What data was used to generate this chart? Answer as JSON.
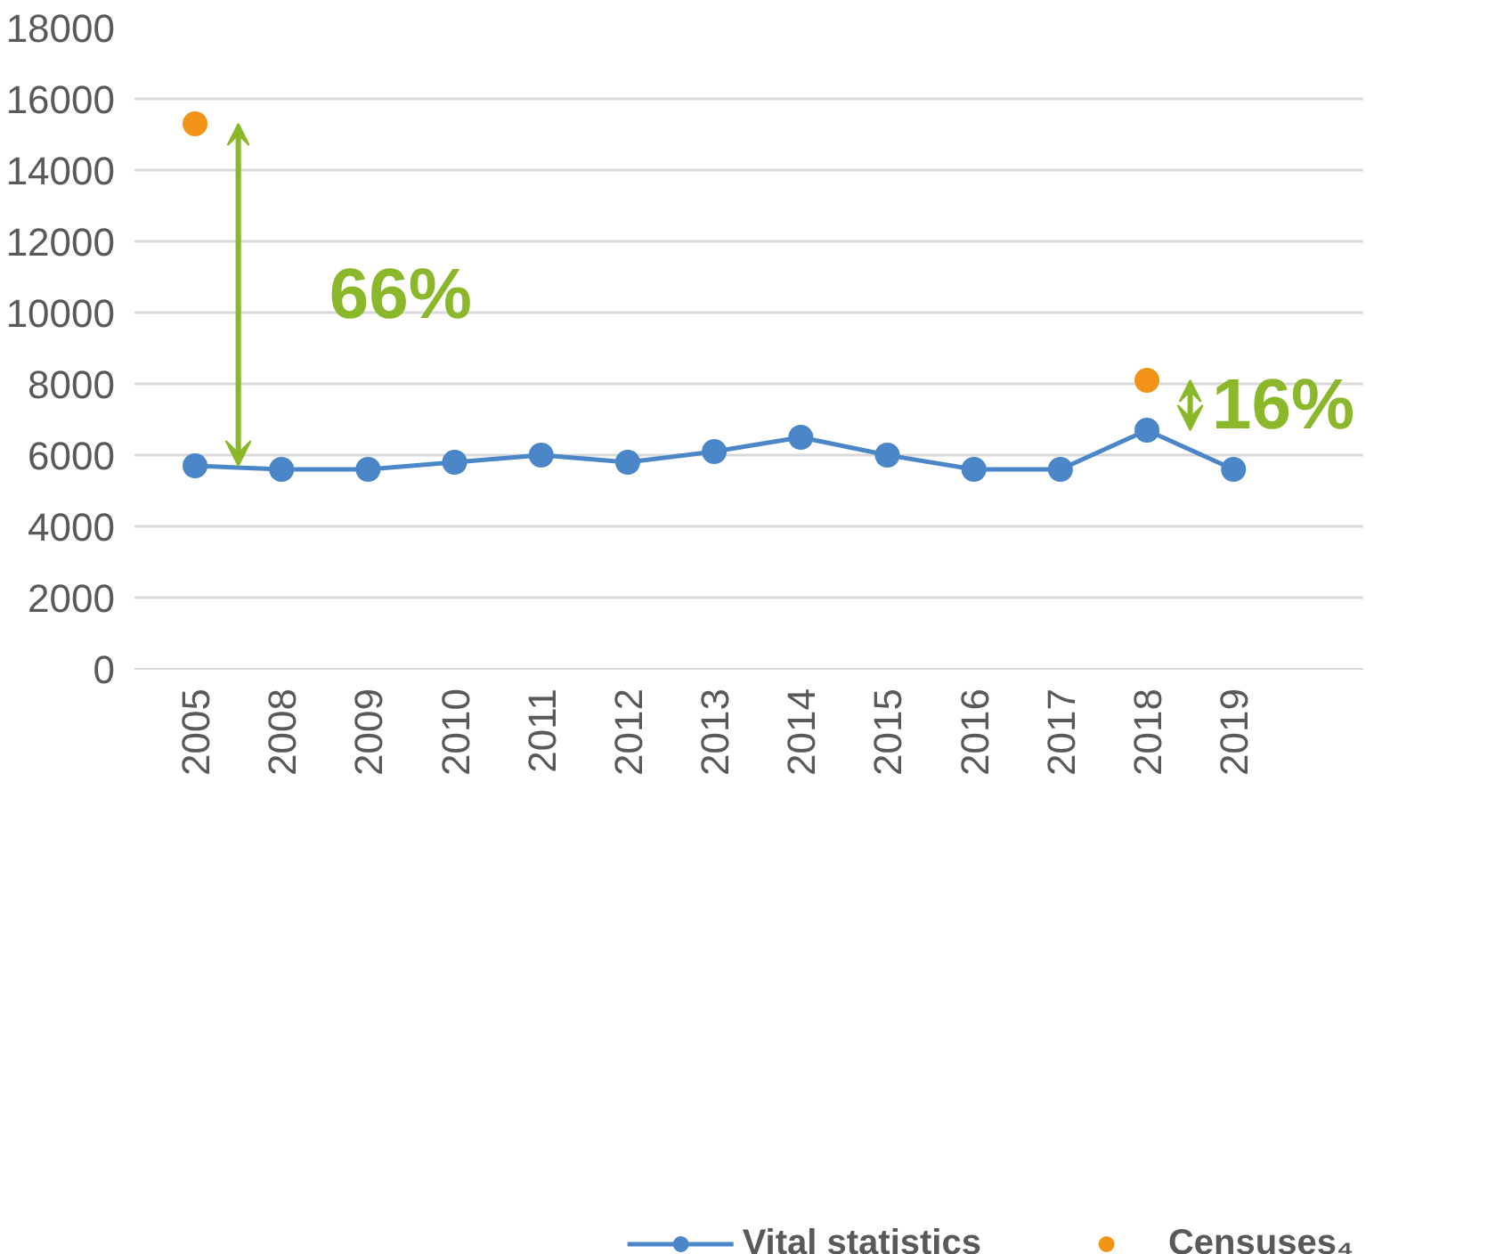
{
  "chart_data": {
    "type": "line",
    "categories": [
      "2005",
      "2008",
      "2009",
      "2010",
      "2011",
      "2012",
      "2013",
      "2014",
      "2015",
      "2016",
      "2017",
      "2018",
      "2019"
    ],
    "series": [
      {
        "name": "Vital statistics",
        "color": "#4a86c8",
        "values": [
          5700,
          5600,
          5600,
          5800,
          6000,
          5800,
          6100,
          6500,
          6000,
          5600,
          5600,
          6700,
          5600
        ]
      },
      {
        "name": "Censuses₄",
        "type": "scatter",
        "color": "#f29418",
        "values": [
          15300,
          null,
          null,
          null,
          null,
          null,
          null,
          null,
          null,
          null,
          null,
          8100,
          null
        ]
      }
    ],
    "ylim": [
      0,
      18000
    ],
    "yticks": [
      0,
      2000,
      4000,
      6000,
      8000,
      10000,
      12000,
      14000,
      16000,
      18000
    ],
    "annotations": [
      {
        "text": "66%",
        "x": "2005",
        "y": 15300
      },
      {
        "text": "16%",
        "x": "2018",
        "y": 8100
      }
    ],
    "grid": "y",
    "legend": "bottom",
    "marker": "circle",
    "line_style": "solid"
  }
}
